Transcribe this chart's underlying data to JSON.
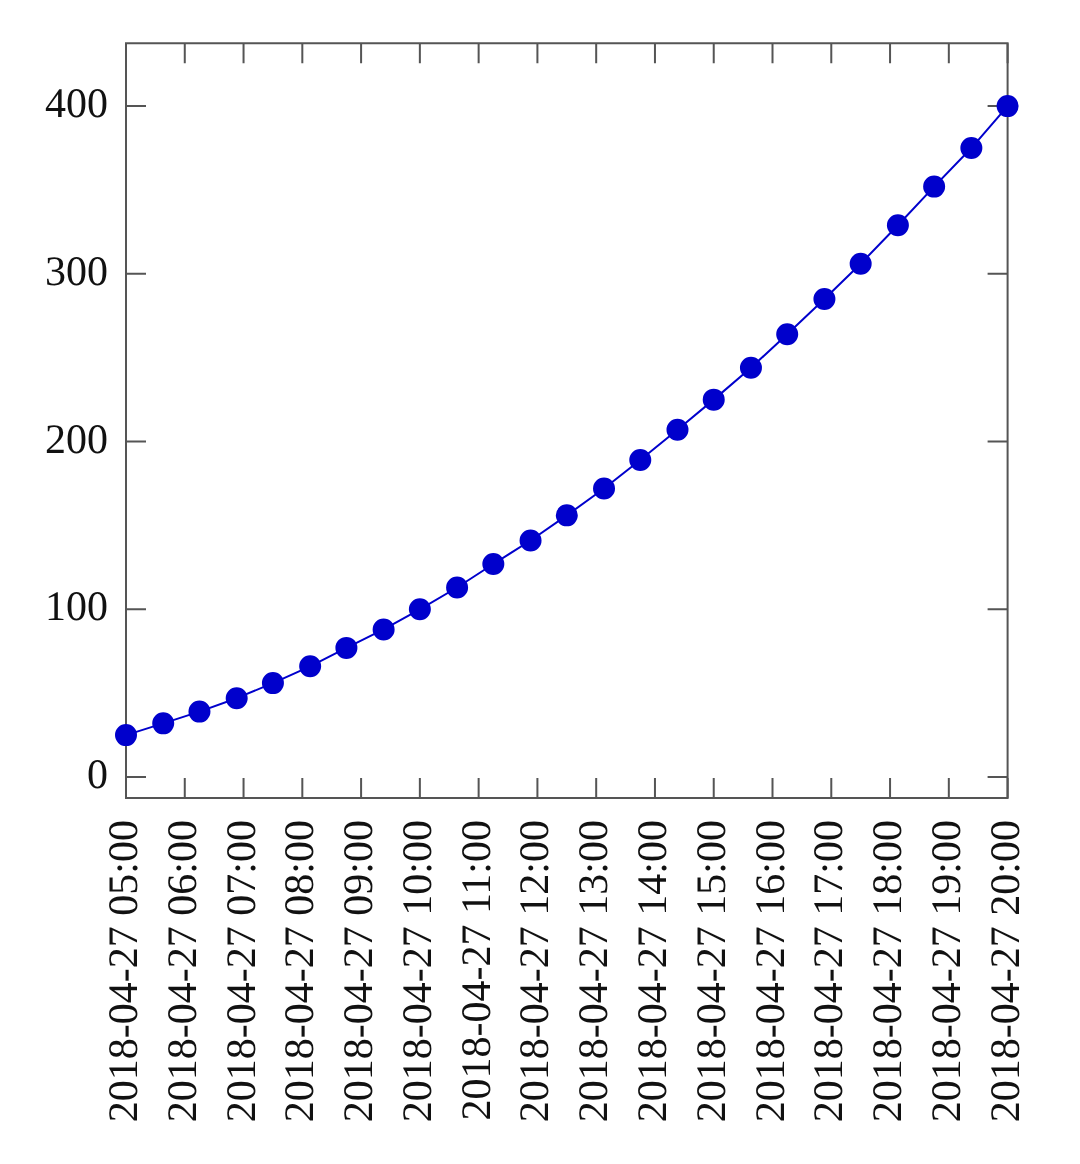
{
  "chart_data": {
    "type": "line",
    "color": "#0000cc",
    "marker": "circle",
    "line_style": "solid",
    "legend": false,
    "x": [
      "2018-04-27T05:00",
      "2018-04-27T05:38",
      "2018-04-27T06:15",
      "2018-04-27T06:53",
      "2018-04-27T07:30",
      "2018-04-27T08:08",
      "2018-04-27T08:45",
      "2018-04-27T09:23",
      "2018-04-27T10:00",
      "2018-04-27T10:38",
      "2018-04-27T11:15",
      "2018-04-27T11:53",
      "2018-04-27T12:30",
      "2018-04-27T13:08",
      "2018-04-27T13:45",
      "2018-04-27T14:23",
      "2018-04-27T15:00",
      "2018-04-27T15:38",
      "2018-04-27T16:15",
      "2018-04-27T16:53",
      "2018-04-27T17:30",
      "2018-04-27T18:08",
      "2018-04-27T18:45",
      "2018-04-27T19:23",
      "2018-04-27T20:00"
    ],
    "values": [
      25,
      32,
      39,
      47,
      56,
      66,
      77,
      88,
      100,
      113,
      127,
      141,
      156,
      172,
      189,
      207,
      225,
      244,
      264,
      285,
      306,
      329,
      352,
      375,
      400
    ],
    "xlim": [
      "2018-04-27T05:00",
      "2018-04-27T20:00"
    ],
    "xticks": [
      {
        "value": "2018-04-27T05:00",
        "label": "2018-04-27 05:00"
      },
      {
        "value": "2018-04-27T06:00",
        "label": "2018-04-27 06:00"
      },
      {
        "value": "2018-04-27T07:00",
        "label": "2018-04-27 07:00"
      },
      {
        "value": "2018-04-27T08:00",
        "label": "2018-04-27 08:00"
      },
      {
        "value": "2018-04-27T09:00",
        "label": "2018-04-27 09:00"
      },
      {
        "value": "2018-04-27T10:00",
        "label": "2018-04-27 10:00"
      },
      {
        "value": "2018-04-27T11:00",
        "label": "2018-04-27 11:00"
      },
      {
        "value": "2018-04-27T12:00",
        "label": "2018-04-27 12:00"
      },
      {
        "value": "2018-04-27T13:00",
        "label": "2018-04-27 13:00"
      },
      {
        "value": "2018-04-27T14:00",
        "label": "2018-04-27 14:00"
      },
      {
        "value": "2018-04-27T15:00",
        "label": "2018-04-27 15:00"
      },
      {
        "value": "2018-04-27T16:00",
        "label": "2018-04-27 16:00"
      },
      {
        "value": "2018-04-27T17:00",
        "label": "2018-04-27 17:00"
      },
      {
        "value": "2018-04-27T18:00",
        "label": "2018-04-27 18:00"
      },
      {
        "value": "2018-04-27T19:00",
        "label": "2018-04-27 19:00"
      },
      {
        "value": "2018-04-27T20:00",
        "label": "2018-04-27 20:00"
      }
    ],
    "ylim": [
      -12.5,
      437.5
    ],
    "yticks": [
      0,
      100,
      200,
      300,
      400
    ]
  }
}
